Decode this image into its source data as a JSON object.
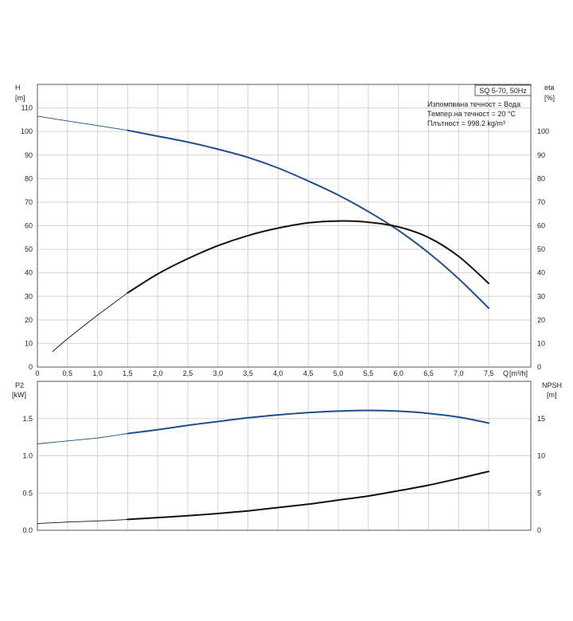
{
  "chart_data": [
    {
      "id": "top",
      "type": "line",
      "model_label": "SQ 5-70, 50Hz",
      "info_lines": [
        "Изпомпвана течност = Вода",
        "Темпер.на течност = 20 °C",
        "Плътност = 998.2 kg/m³"
      ],
      "xlabel": "Q [m³/h]",
      "x_label_q": "Q",
      "x_label_unit": "[m³/h]",
      "xlim": [
        0,
        8.2
      ],
      "x_ticks": [
        "0",
        "0,5",
        "1,0",
        "1,5",
        "2,0",
        "2,5",
        "3,0",
        "3,5",
        "4,0",
        "4,5",
        "5,0",
        "5,5",
        "6,0",
        "6,5",
        "7,0",
        "7,5"
      ],
      "left_axis": {
        "label": "H",
        "unit": "[m]",
        "lim": [
          0,
          120
        ],
        "ticks": [
          "0",
          "10",
          "20",
          "30",
          "40",
          "50",
          "60",
          "70",
          "80",
          "90",
          "100",
          "110"
        ]
      },
      "right_axis": {
        "label": "eta",
        "unit": "[%]",
        "lim": [
          0,
          120
        ],
        "ticks": [
          "0",
          "10",
          "20",
          "30",
          "40",
          "50",
          "60",
          "70",
          "80",
          "90",
          "100"
        ]
      },
      "grid": true,
      "series": [
        {
          "axis": "left",
          "color": "#1f4e8c",
          "x": [
            0,
            0.5,
            1.0,
            1.5,
            2.0,
            2.5,
            3.0,
            3.5,
            4.0,
            4.5,
            5.0,
            5.5,
            6.0,
            6.5,
            7.0,
            7.5
          ],
          "values": [
            106.5,
            104.5,
            102.5,
            100.5,
            98,
            95.5,
            92.5,
            89,
            84.5,
            79,
            73,
            66,
            58,
            48.5,
            37.5,
            25
          ],
          "op_start": 1.5
        },
        {
          "axis": "right",
          "color": "#111111",
          "x": [
            0.25,
            0.5,
            1.0,
            1.5,
            2.0,
            2.5,
            3.0,
            3.5,
            4.0,
            4.5,
            5.0,
            5.5,
            6.0,
            6.5,
            7.0,
            7.5
          ],
          "values": [
            6.5,
            12,
            22,
            31.5,
            39.5,
            46,
            51.5,
            55.8,
            59,
            61.2,
            62,
            61.5,
            59.5,
            55,
            47,
            35.5
          ],
          "op_start": 1.5
        }
      ]
    },
    {
      "id": "bottom",
      "type": "line",
      "xlim": [
        0,
        8.2
      ],
      "left_axis": {
        "label": "P2",
        "unit": "[kW]",
        "lim": [
          0,
          2.0
        ],
        "ticks": [
          "0.0",
          "0.5",
          "1.0",
          "1.5"
        ],
        "tick_values": [
          0,
          0.5,
          1.0,
          1.5
        ]
      },
      "right_axis": {
        "label": "NPSH",
        "unit": "[m]",
        "lim": [
          0,
          20
        ],
        "ticks": [
          "0",
          "5",
          "10",
          "15"
        ],
        "tick_values": [
          0,
          5,
          10,
          15
        ]
      },
      "grid": true,
      "series": [
        {
          "axis": "left",
          "color": "#1f4e8c",
          "x": [
            0,
            0.5,
            1.0,
            1.5,
            2.0,
            2.5,
            3.0,
            3.5,
            4.0,
            4.5,
            5.0,
            5.5,
            6.0,
            6.5,
            7.0,
            7.5
          ],
          "values": [
            1.16,
            1.2,
            1.24,
            1.3,
            1.35,
            1.41,
            1.46,
            1.51,
            1.55,
            1.58,
            1.6,
            1.61,
            1.6,
            1.57,
            1.52,
            1.44
          ],
          "op_start": 1.5
        },
        {
          "axis": "right",
          "color": "#111111",
          "x": [
            0,
            0.5,
            1.0,
            1.5,
            2.0,
            2.5,
            3.0,
            3.5,
            4.0,
            4.5,
            5.0,
            5.5,
            6.0,
            6.5,
            7.0,
            7.5
          ],
          "values": [
            0.9,
            1.1,
            1.25,
            1.45,
            1.7,
            1.95,
            2.25,
            2.6,
            3.05,
            3.5,
            4.05,
            4.6,
            5.3,
            6.05,
            6.95,
            7.9
          ],
          "op_start": 1.5
        }
      ]
    }
  ]
}
